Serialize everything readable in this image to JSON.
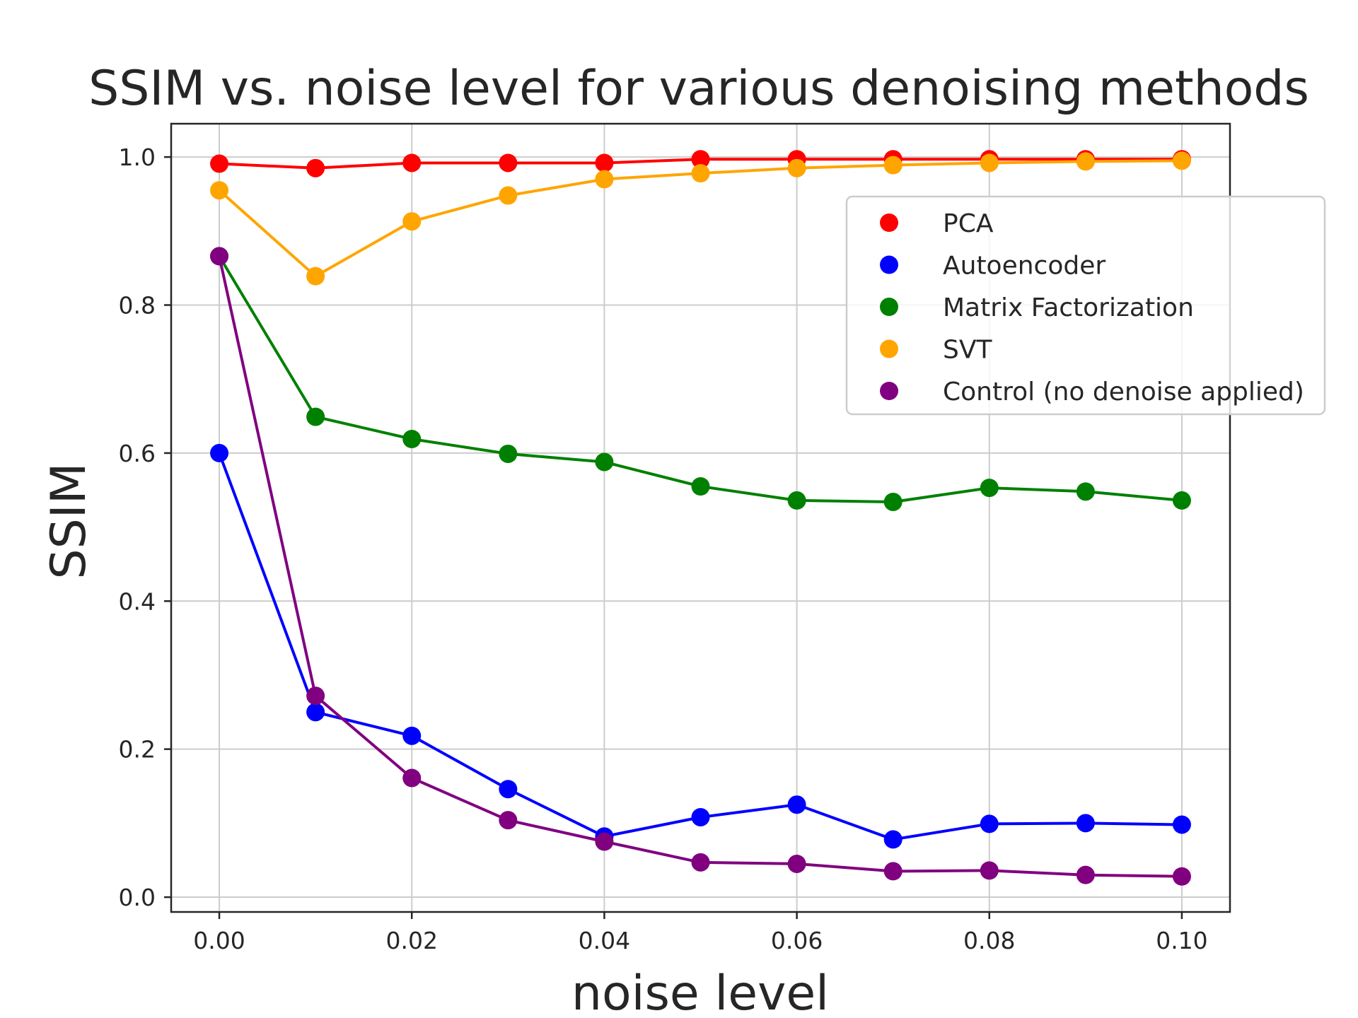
{
  "chart_data": {
    "type": "line",
    "title": "SSIM vs. noise level for various denoising methods",
    "xlabel": "noise level",
    "ylabel": "SSIM",
    "xlim": [
      -0.005,
      0.105
    ],
    "ylim": [
      -0.02,
      1.045
    ],
    "x_ticks": [
      "0.00",
      "0.02",
      "0.04",
      "0.06",
      "0.08",
      "0.10"
    ],
    "x_tick_values": [
      0.0,
      0.02,
      0.04,
      0.06,
      0.08,
      0.1
    ],
    "y_ticks": [
      "0.0",
      "0.2",
      "0.4",
      "0.6",
      "0.8",
      "1.0"
    ],
    "y_tick_values": [
      0.0,
      0.2,
      0.4,
      0.6,
      0.8,
      1.0
    ],
    "grid": true,
    "legend_position": "upper-right",
    "x": [
      0.0,
      0.01,
      0.02,
      0.03,
      0.04,
      0.05,
      0.06,
      0.07,
      0.08,
      0.09,
      0.1
    ],
    "series": [
      {
        "name": "PCA",
        "color": "#ff0000",
        "values": [
          0.991,
          0.985,
          0.992,
          0.992,
          0.992,
          0.997,
          0.997,
          0.997,
          0.997,
          0.997,
          0.997
        ]
      },
      {
        "name": "Autoencoder",
        "color": "#0000ff",
        "values": [
          0.6,
          0.25,
          0.218,
          0.146,
          0.082,
          0.108,
          0.125,
          0.078,
          0.099,
          0.1,
          0.098
        ]
      },
      {
        "name": "Matrix Factorization",
        "color": "#008000",
        "values": [
          0.866,
          0.649,
          0.619,
          0.599,
          0.588,
          0.555,
          0.536,
          0.534,
          0.553,
          0.548,
          0.536
        ]
      },
      {
        "name": "SVT",
        "color": "#ffa500",
        "values": [
          0.955,
          0.839,
          0.913,
          0.948,
          0.97,
          0.978,
          0.985,
          0.989,
          0.992,
          0.994,
          0.995
        ]
      },
      {
        "name": "Control (no denoise applied)",
        "color": "#800080",
        "values": [
          0.866,
          0.272,
          0.161,
          0.104,
          0.075,
          0.047,
          0.045,
          0.035,
          0.036,
          0.03,
          0.028
        ]
      }
    ]
  }
}
